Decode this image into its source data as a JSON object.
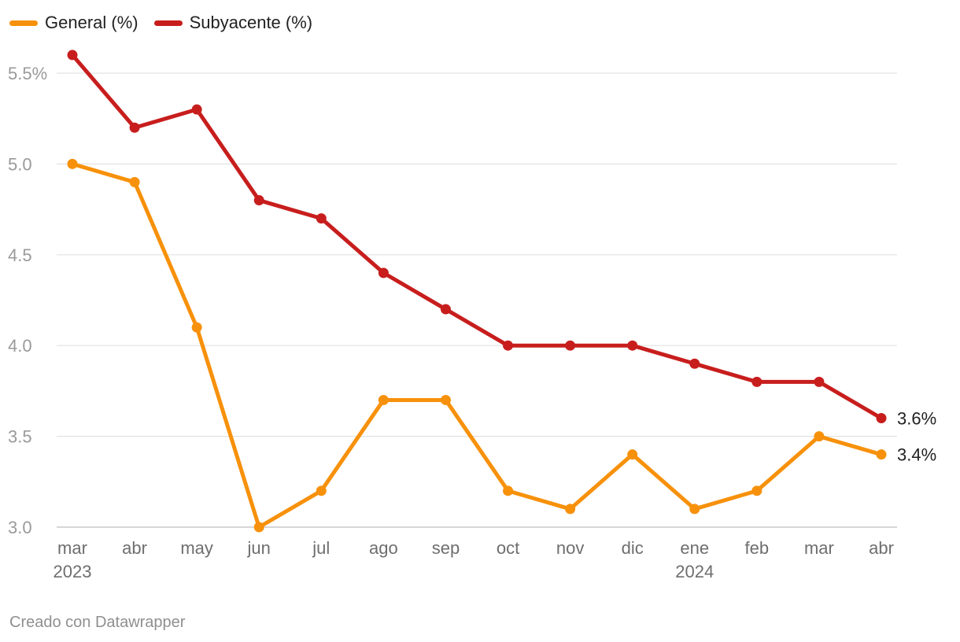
{
  "chart_data": {
    "type": "line",
    "categories": [
      "mar",
      "abr",
      "may",
      "jun",
      "jul",
      "ago",
      "sep",
      "oct",
      "nov",
      "dic",
      "ene",
      "feb",
      "mar",
      "abr"
    ],
    "year_labels": [
      "2023",
      "",
      "",
      "",
      "",
      "",
      "",
      "",
      "",
      "",
      "2024",
      "",
      "",
      ""
    ],
    "series": [
      {
        "name": "General (%)",
        "color": "#f7910b",
        "values": [
          5.0,
          4.9,
          4.1,
          3.0,
          3.2,
          3.7,
          3.7,
          3.2,
          3.1,
          3.4,
          3.1,
          3.2,
          3.5,
          3.4
        ],
        "end_label": "3.4%"
      },
      {
        "name": "Subyacente (%)",
        "color": "#c71e1d",
        "values": [
          5.6,
          5.2,
          5.3,
          4.8,
          4.7,
          4.4,
          4.2,
          4.0,
          4.0,
          4.0,
          3.9,
          3.8,
          3.8,
          3.6
        ],
        "end_label": "3.6%"
      }
    ],
    "y_ticks": [
      "3.0",
      "3.5",
      "4.0",
      "4.5",
      "5.0",
      "5.5%"
    ],
    "ylim": [
      3.0,
      5.5
    ],
    "grid": true,
    "legend_position": "top-left"
  },
  "footer": {
    "credit": "Creado con Datawrapper"
  }
}
